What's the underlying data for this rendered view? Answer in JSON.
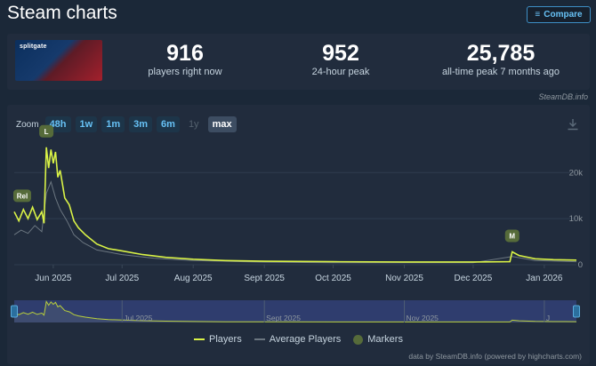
{
  "header": {
    "title": "Steam charts",
    "compare_label": "Compare"
  },
  "game": {
    "logo_text": "splitgate"
  },
  "stats": [
    {
      "value": "916",
      "label": "players right now"
    },
    {
      "value": "952",
      "label": "24-hour peak"
    },
    {
      "value": "25,785",
      "label": "all-time peak 7 months ago"
    }
  ],
  "credit": "SteamDB.info",
  "zoom": {
    "label": "Zoom",
    "buttons": [
      {
        "label": "48h",
        "state": "normal"
      },
      {
        "label": "1w",
        "state": "normal"
      },
      {
        "label": "1m",
        "state": "normal"
      },
      {
        "label": "3m",
        "state": "normal"
      },
      {
        "label": "6m",
        "state": "normal"
      },
      {
        "label": "1y",
        "state": "disabled"
      },
      {
        "label": "max",
        "state": "active"
      }
    ]
  },
  "colors": {
    "players": "#d9f246",
    "average": "#6b7680",
    "markers": "#566b3a",
    "navigator_fill": "#2f3d6e"
  },
  "chart_data": {
    "type": "line",
    "x_labels": [
      "Jun 2025",
      "Jul 2025",
      "Aug 2025",
      "Sept 2025",
      "Oct 2025",
      "Nov 2025",
      "Dec 2025",
      "Jan 2026"
    ],
    "y_ticks": [
      "0",
      "10k",
      "20k"
    ],
    "ylim": [
      0,
      27000
    ],
    "x_start": "2025-05-15",
    "x_end": "2026-01-15",
    "series": [
      {
        "name": "Players",
        "points": [
          [
            "2025-05-15",
            11500
          ],
          [
            "2025-05-17",
            9500
          ],
          [
            "2025-05-19",
            12000
          ],
          [
            "2025-05-21",
            10000
          ],
          [
            "2025-05-23",
            12500
          ],
          [
            "2025-05-25",
            9800
          ],
          [
            "2025-05-27",
            11500
          ],
          [
            "2025-05-28",
            9000
          ],
          [
            "2025-05-29",
            25500
          ],
          [
            "2025-05-30",
            21000
          ],
          [
            "2025-05-31",
            25000
          ],
          [
            "2025-06-01",
            22000
          ],
          [
            "2025-06-02",
            24500
          ],
          [
            "2025-06-03",
            19000
          ],
          [
            "2025-06-04",
            20500
          ],
          [
            "2025-06-06",
            14500
          ],
          [
            "2025-06-08",
            13000
          ],
          [
            "2025-06-10",
            9500
          ],
          [
            "2025-06-12",
            8000
          ],
          [
            "2025-06-15",
            6500
          ],
          [
            "2025-06-20",
            4500
          ],
          [
            "2025-06-25",
            3500
          ],
          [
            "2025-07-01",
            3000
          ],
          [
            "2025-07-10",
            2200
          ],
          [
            "2025-07-20",
            1600
          ],
          [
            "2025-08-01",
            1200
          ],
          [
            "2025-08-15",
            900
          ],
          [
            "2025-09-01",
            750
          ],
          [
            "2025-10-01",
            650
          ],
          [
            "2025-11-01",
            600
          ],
          [
            "2025-12-01",
            600
          ],
          [
            "2025-12-17",
            650
          ],
          [
            "2025-12-18",
            2800
          ],
          [
            "2025-12-21",
            2000
          ],
          [
            "2025-12-28",
            1300
          ],
          [
            "2026-01-05",
            1100
          ],
          [
            "2026-01-15",
            1000
          ]
        ]
      },
      {
        "name": "Average Players",
        "points": [
          [
            "2025-05-15",
            6500
          ],
          [
            "2025-05-18",
            7500
          ],
          [
            "2025-05-21",
            6800
          ],
          [
            "2025-05-24",
            8500
          ],
          [
            "2025-05-27",
            7200
          ],
          [
            "2025-05-29",
            15500
          ],
          [
            "2025-05-31",
            18000
          ],
          [
            "2025-06-02",
            14500
          ],
          [
            "2025-06-04",
            12000
          ],
          [
            "2025-06-07",
            9500
          ],
          [
            "2025-06-10",
            6500
          ],
          [
            "2025-06-14",
            4800
          ],
          [
            "2025-06-20",
            3200
          ],
          [
            "2025-07-01",
            2200
          ],
          [
            "2025-07-15",
            1400
          ],
          [
            "2025-08-01",
            900
          ],
          [
            "2025-09-01",
            550
          ],
          [
            "2025-10-01",
            450
          ],
          [
            "2025-11-01",
            420
          ],
          [
            "2025-12-01",
            420
          ],
          [
            "2025-12-18",
            1800
          ],
          [
            "2025-12-28",
            900
          ],
          [
            "2026-01-15",
            650
          ]
        ]
      }
    ],
    "markers": [
      {
        "label": "Rel",
        "date": "2025-05-15"
      },
      {
        "label": "L",
        "date": "2025-05-29"
      },
      {
        "label": "M",
        "date": "2025-12-18"
      }
    ],
    "navigator_labels": [
      "Jul 2025",
      "Sept 2025",
      "Nov 2025",
      "J"
    ]
  },
  "legend": [
    {
      "name": "Players"
    },
    {
      "name": "Average Players"
    },
    {
      "name": "Markers"
    }
  ],
  "footer": "data by SteamDB.info (powered by highcharts.com)"
}
